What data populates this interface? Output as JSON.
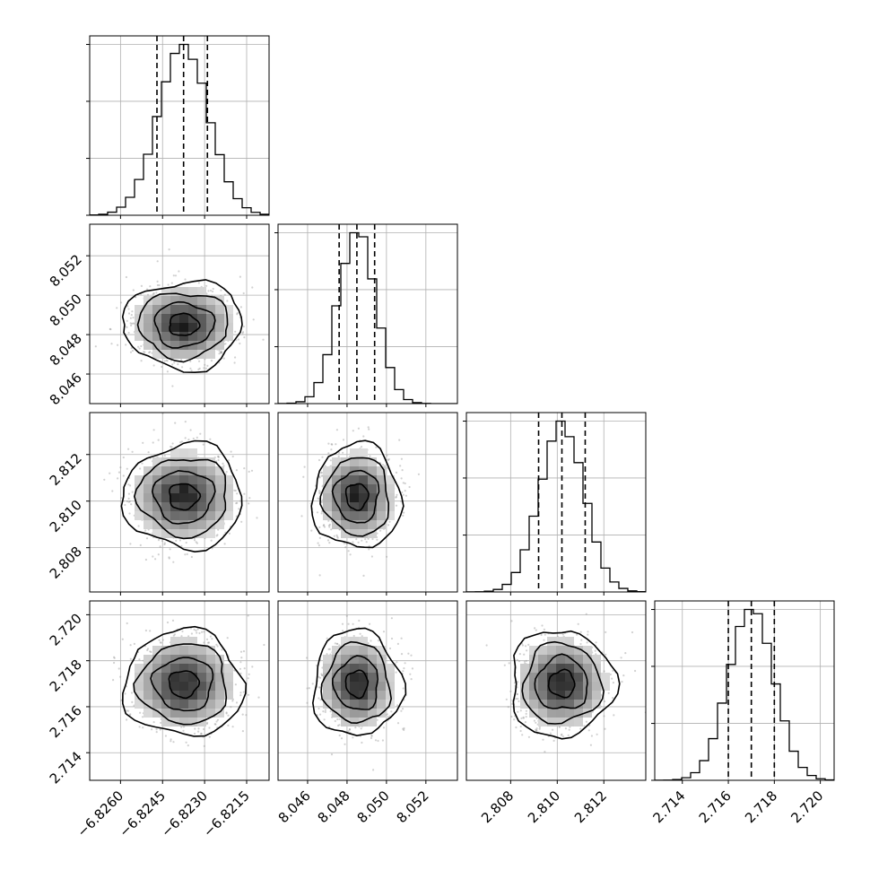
{
  "chart_data": {
    "type": "corner",
    "parameters": [
      {
        "mean": -6.82375,
        "std": 0.0009,
        "range": [
          -6.8271,
          -6.8207
        ],
        "ticks": [
          -6.826,
          -6.8245,
          -6.823,
          -6.8215
        ],
        "tick_labels": [
          "−6.8260",
          "−6.8245",
          "−6.8230",
          "−6.8215"
        ],
        "quantiles": [
          -6.8247,
          -6.82375,
          -6.8229
        ]
      },
      {
        "mean": 8.0485,
        "std": 0.00095,
        "range": [
          8.0445,
          8.0536
        ],
        "ticks": [
          8.046,
          8.048,
          8.05,
          8.052
        ],
        "tick_labels": [
          "8.046",
          "8.048",
          "8.050",
          "8.052"
        ],
        "quantiles": [
          8.0476,
          8.0485,
          8.0494
        ]
      },
      {
        "mean": 2.8102,
        "std": 0.00095,
        "range": [
          2.8061,
          2.8138
        ],
        "ticks": [
          2.808,
          2.81,
          2.812
        ],
        "tick_labels": [
          "2.808",
          "2.810",
          "2.812"
        ],
        "quantiles": [
          2.8092,
          2.8102,
          2.8112
        ]
      },
      {
        "mean": 2.717,
        "std": 0.00098,
        "range": [
          2.7128,
          2.7206
        ],
        "ticks": [
          2.714,
          2.716,
          2.718,
          2.72
        ],
        "tick_labels": [
          "2.714",
          "2.716",
          "2.718",
          "2.720"
        ],
        "quantiles": [
          2.716,
          2.717,
          2.718
        ]
      }
    ],
    "grid": true,
    "histogram_bins": 20,
    "contour_levels_sigma": [
      0.5,
      1.0,
      1.5,
      2.0
    ],
    "colors": {
      "line": "#000000",
      "scatter": "#9a9a9a",
      "grid": "#b0b0b0",
      "background": "#ffffff"
    }
  }
}
